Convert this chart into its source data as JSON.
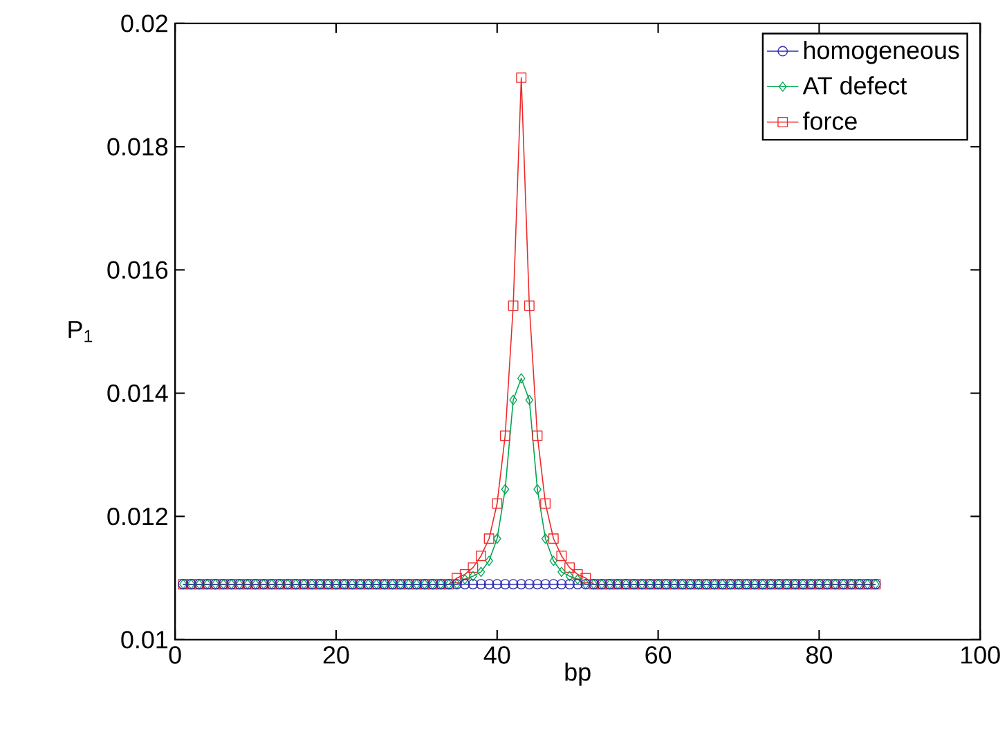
{
  "chart_data": {
    "type": "line",
    "xlabel": "bp",
    "ylabel": "P$_{1}$",
    "x": [
      1,
      2,
      3,
      4,
      5,
      6,
      7,
      8,
      9,
      10,
      11,
      12,
      13,
      14,
      15,
      16,
      17,
      18,
      19,
      20,
      21,
      22,
      23,
      24,
      25,
      26,
      27,
      28,
      29,
      30,
      31,
      32,
      33,
      34,
      35,
      36,
      37,
      38,
      39,
      40,
      41,
      42,
      43,
      44,
      45,
      46,
      47,
      48,
      49,
      50,
      51,
      52,
      53,
      54,
      55,
      56,
      57,
      58,
      59,
      60,
      61,
      62,
      63,
      64,
      65,
      66,
      67,
      68,
      69,
      70,
      71,
      72,
      73,
      74,
      75,
      76,
      77,
      78,
      79,
      80,
      81,
      82,
      83,
      84,
      85,
      86,
      87
    ],
    "series": [
      {
        "name": "homogeneous",
        "color": "#2b2bb0",
        "marker": "circle",
        "values": [
          0.0109,
          0.0109,
          0.0109,
          0.0109,
          0.0109,
          0.0109,
          0.0109,
          0.0109,
          0.0109,
          0.0109,
          0.0109,
          0.0109,
          0.0109,
          0.0109,
          0.0109,
          0.0109,
          0.0109,
          0.0109,
          0.0109,
          0.0109,
          0.0109,
          0.0109,
          0.0109,
          0.0109,
          0.0109,
          0.0109,
          0.0109,
          0.0109,
          0.0109,
          0.0109,
          0.0109,
          0.0109,
          0.0109,
          0.0109,
          0.0109,
          0.0109,
          0.0109,
          0.0109,
          0.0109,
          0.0109,
          0.0109,
          0.0109,
          0.0109,
          0.0109,
          0.0109,
          0.0109,
          0.0109,
          0.0109,
          0.0109,
          0.0109,
          0.0109,
          0.0109,
          0.0109,
          0.0109,
          0.0109,
          0.0109,
          0.0109,
          0.0109,
          0.0109,
          0.0109,
          0.0109,
          0.0109,
          0.0109,
          0.0109,
          0.0109,
          0.0109,
          0.0109,
          0.0109,
          0.0109,
          0.0109,
          0.0109,
          0.0109,
          0.0109,
          0.0109,
          0.0109,
          0.0109,
          0.0109,
          0.0109,
          0.0109,
          0.0109,
          0.0109,
          0.0109,
          0.0109,
          0.0109,
          0.0109,
          0.0109,
          0.0109
        ]
      },
      {
        "name": "AT defect",
        "color": "#00a651",
        "marker": "diamond",
        "values": [
          0.0109,
          0.0109,
          0.0109,
          0.0109,
          0.0109,
          0.0109,
          0.0109,
          0.0109,
          0.0109,
          0.0109,
          0.0109,
          0.0109,
          0.0109,
          0.0109,
          0.0109,
          0.0109,
          0.0109,
          0.0109,
          0.0109,
          0.0109,
          0.0109,
          0.0109,
          0.0109,
          0.0109,
          0.0109,
          0.0109,
          0.0109,
          0.0109,
          0.0109,
          0.0109,
          0.0109,
          0.0109,
          0.0109,
          0.0109,
          0.0109,
          0.01098,
          0.01103,
          0.0111,
          0.01128,
          0.01164,
          0.01244,
          0.01389,
          0.01424,
          0.01389,
          0.01244,
          0.01164,
          0.01128,
          0.0111,
          0.01103,
          0.01098,
          0.0109,
          0.0109,
          0.0109,
          0.0109,
          0.0109,
          0.0109,
          0.0109,
          0.0109,
          0.0109,
          0.0109,
          0.0109,
          0.0109,
          0.0109,
          0.0109,
          0.0109,
          0.0109,
          0.0109,
          0.0109,
          0.0109,
          0.0109,
          0.0109,
          0.0109,
          0.0109,
          0.0109,
          0.0109,
          0.0109,
          0.0109,
          0.0109,
          0.0109,
          0.0109,
          0.0109,
          0.0109,
          0.0109,
          0.0109,
          0.0109,
          0.0109,
          0.0109
        ]
      },
      {
        "name": "force",
        "color": "#ee2a2a",
        "marker": "square",
        "values": [
          0.0109,
          0.0109,
          0.0109,
          0.0109,
          0.0109,
          0.0109,
          0.0109,
          0.0109,
          0.0109,
          0.0109,
          0.0109,
          0.0109,
          0.0109,
          0.0109,
          0.0109,
          0.0109,
          0.0109,
          0.0109,
          0.0109,
          0.0109,
          0.0109,
          0.0109,
          0.0109,
          0.0109,
          0.0109,
          0.0109,
          0.0109,
          0.0109,
          0.0109,
          0.0109,
          0.0109,
          0.0109,
          0.0109,
          0.0109,
          0.011,
          0.01106,
          0.01117,
          0.01136,
          0.01164,
          0.01221,
          0.01331,
          0.01542,
          0.01912,
          0.01542,
          0.01331,
          0.01221,
          0.01164,
          0.01136,
          0.01117,
          0.01106,
          0.011,
          0.0109,
          0.0109,
          0.0109,
          0.0109,
          0.0109,
          0.0109,
          0.0109,
          0.0109,
          0.0109,
          0.0109,
          0.0109,
          0.0109,
          0.0109,
          0.0109,
          0.0109,
          0.0109,
          0.0109,
          0.0109,
          0.0109,
          0.0109,
          0.0109,
          0.0109,
          0.0109,
          0.0109,
          0.0109,
          0.0109,
          0.0109,
          0.0109,
          0.0109,
          0.0109,
          0.0109,
          0.0109,
          0.0109,
          0.0109,
          0.0109,
          0.0109
        ]
      }
    ],
    "xlim": [
      0,
      100
    ],
    "ylim": [
      0.01,
      0.02
    ],
    "xticks": [
      0,
      20,
      40,
      60,
      80,
      100
    ],
    "yticks": [
      0.01,
      0.012,
      0.014,
      0.016,
      0.018,
      0.02
    ],
    "legend": "top right",
    "line_style": "solid"
  }
}
